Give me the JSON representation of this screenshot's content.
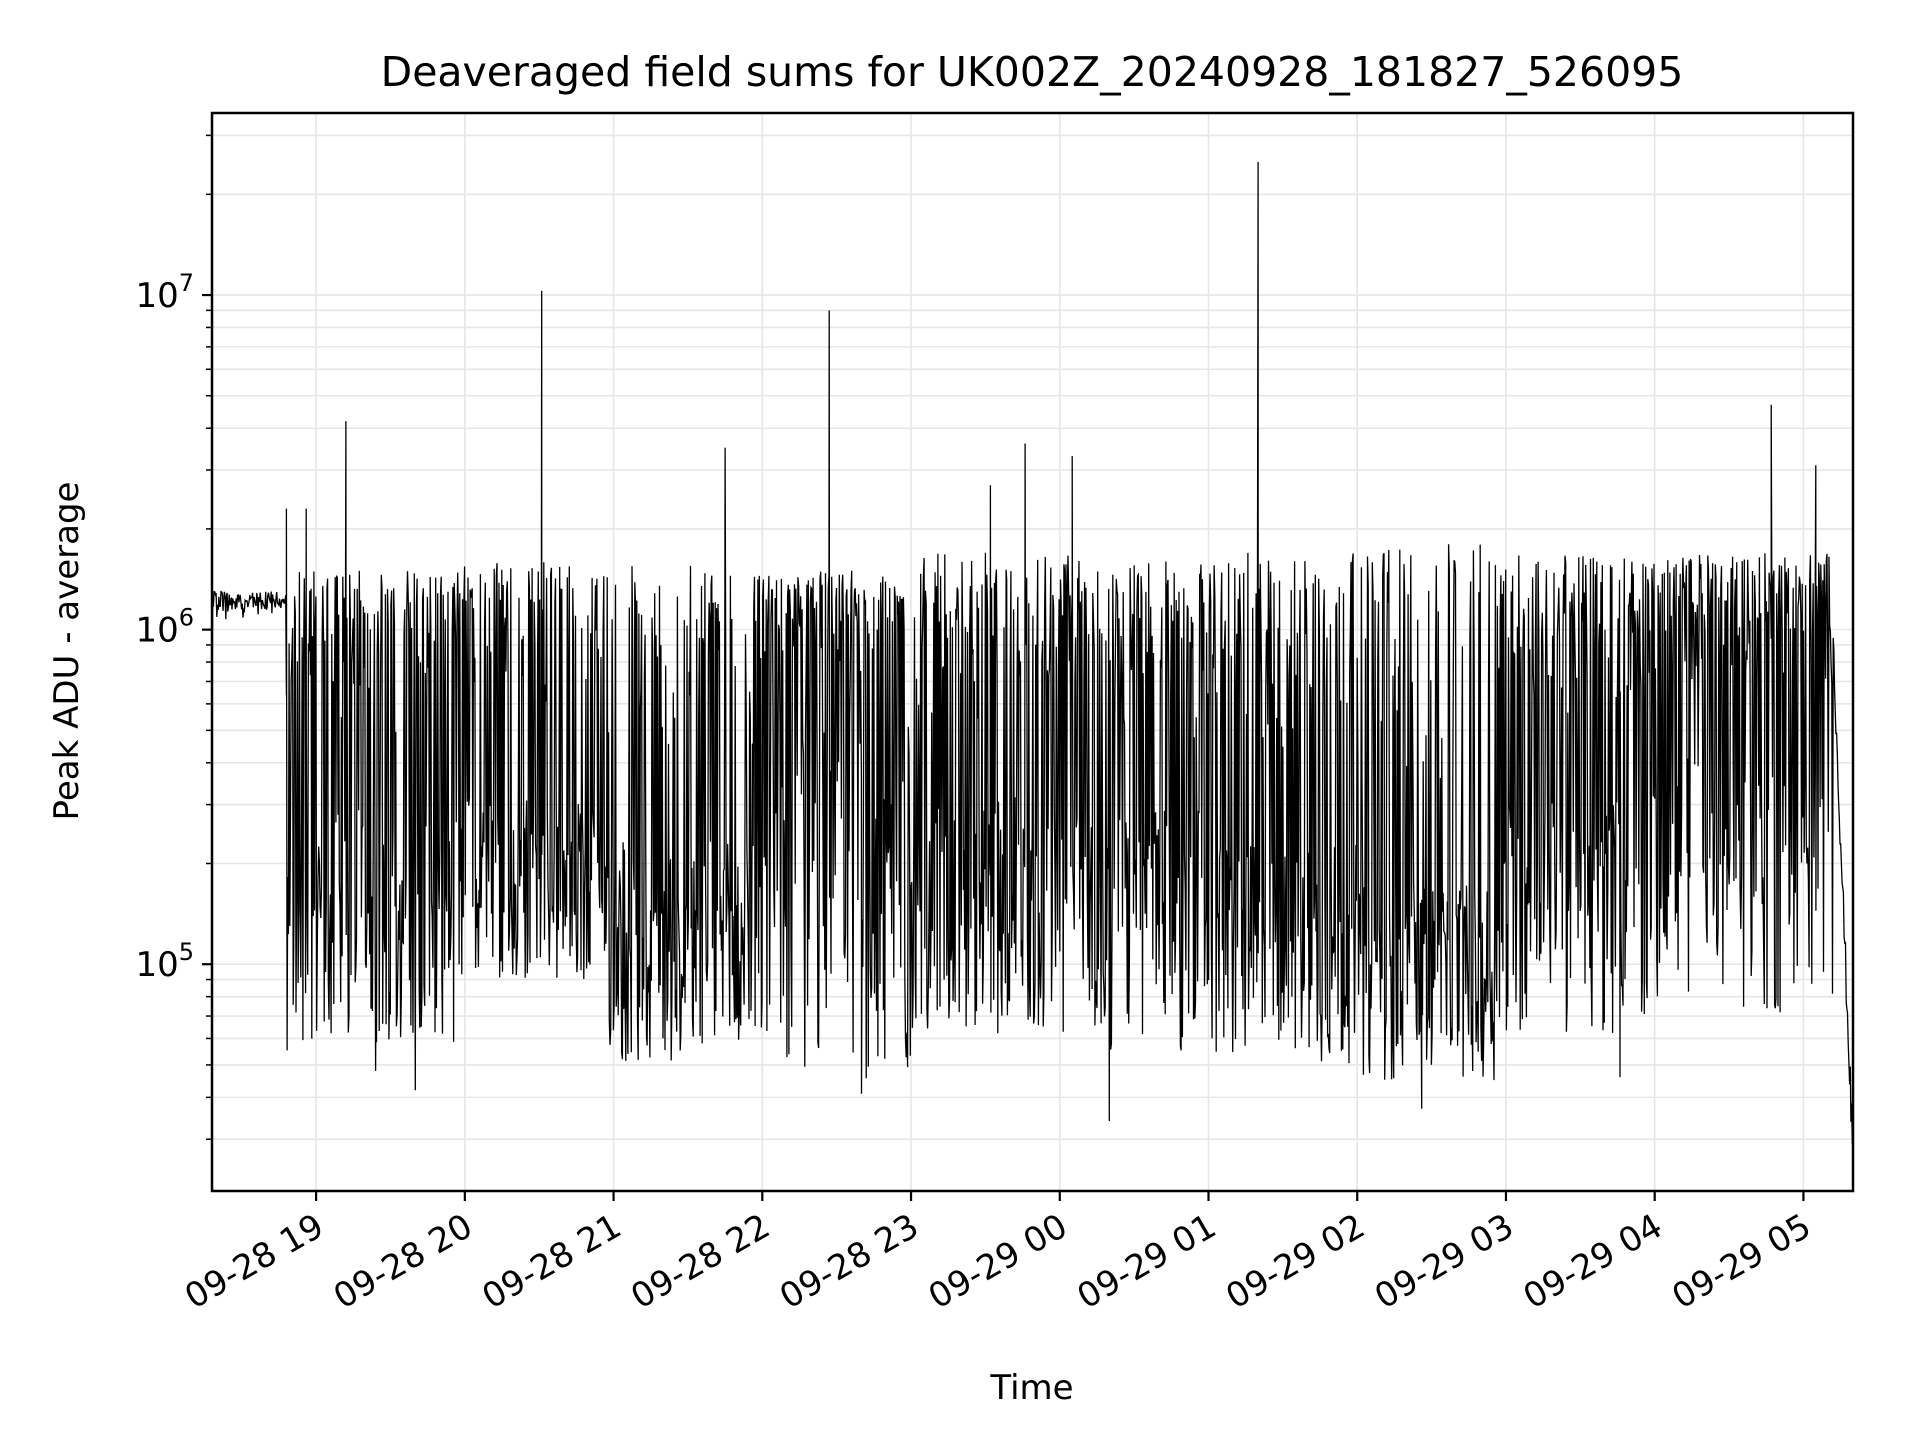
{
  "chart_data": {
    "type": "line",
    "title": "Deaveraged field sums for UK002Z_20240928_181827_526095",
    "xlabel": "Time",
    "ylabel": "Peak ADU - average",
    "yscale": "log",
    "grid": true,
    "grid_minor_y": true,
    "line_color": "#000000",
    "x_start": "2024-09-28 18:18",
    "x_end": "2024-09-29 05:20",
    "xlim": [
      "2024-09-28 18:18",
      "2024-09-29 05:20"
    ],
    "ylim": [
      21000,
      35000000
    ],
    "x_ticks": [
      {
        "value": "2024-09-28 19:00",
        "label": "09-28 19"
      },
      {
        "value": "2024-09-28 20:00",
        "label": "09-28 20"
      },
      {
        "value": "2024-09-28 21:00",
        "label": "09-28 21"
      },
      {
        "value": "2024-09-28 22:00",
        "label": "09-28 22"
      },
      {
        "value": "2024-09-28 23:00",
        "label": "09-28 23"
      },
      {
        "value": "2024-09-29 00:00",
        "label": "09-29 00"
      },
      {
        "value": "2024-09-29 01:00",
        "label": "09-29 01"
      },
      {
        "value": "2024-09-29 02:00",
        "label": "09-29 02"
      },
      {
        "value": "2024-09-29 03:00",
        "label": "09-29 03"
      },
      {
        "value": "2024-09-29 04:00",
        "label": "09-29 04"
      },
      {
        "value": "2024-09-29 05:00",
        "label": "09-29 05"
      }
    ],
    "y_ticks": [
      {
        "value": 100000,
        "base": "10",
        "exp": "5"
      },
      {
        "value": 1000000,
        "base": "10",
        "exp": "6"
      },
      {
        "value": 10000000,
        "base": "10",
        "exp": "7"
      }
    ],
    "notable_points": [
      {
        "x": "2024-09-28 18:18",
        "y": 600000
      },
      {
        "x": "2024-09-28 18:48",
        "y": 2300000
      },
      {
        "x": "2024-09-28 18:56",
        "y": 2300000
      },
      {
        "x": "2024-09-28 19:12",
        "y": 4200000
      },
      {
        "x": "2024-09-28 19:24",
        "y": 48000
      },
      {
        "x": "2024-09-28 19:40",
        "y": 42000
      },
      {
        "x": "2024-09-28 20:31",
        "y": 10300000
      },
      {
        "x": "2024-09-28 21:45",
        "y": 3500000
      },
      {
        "x": "2024-09-28 22:27",
        "y": 9000000
      },
      {
        "x": "2024-09-28 22:40",
        "y": 41000
      },
      {
        "x": "2024-09-28 23:32",
        "y": 2700000
      },
      {
        "x": "2024-09-28 23:46",
        "y": 3600000
      },
      {
        "x": "2024-09-29 00:05",
        "y": 3300000
      },
      {
        "x": "2024-09-29 00:20",
        "y": 34000
      },
      {
        "x": "2024-09-29 01:20",
        "y": 25000000
      },
      {
        "x": "2024-09-29 02:26",
        "y": 37000
      },
      {
        "x": "2024-09-29 03:46",
        "y": 46000
      },
      {
        "x": "2024-09-29 04:47",
        "y": 4700000
      },
      {
        "x": "2024-09-29 05:05",
        "y": 3100000
      },
      {
        "x": "2024-09-29 05:20",
        "y": 30000
      }
    ],
    "series": [
      {
        "segments": [
          [
            "2024-09-28 18:18",
            "2024-09-28 18:48",
            420000,
            1300000,
            420000,
            0,
            0
          ],
          [
            "2024-09-28 18:48",
            "2024-09-28 19:56",
            55000,
            1500000,
            180000,
            0.5,
            0
          ],
          [
            "2024-09-28 19:56",
            "2024-09-28 20:58",
            90000,
            1600000,
            220000,
            0.6,
            0
          ],
          [
            "2024-09-28 20:58",
            "2024-09-28 21:56",
            50000,
            1600000,
            150000,
            0.7,
            0
          ],
          [
            "2024-09-28 21:56",
            "2024-09-28 23:00",
            45000,
            1500000,
            260000,
            0.55,
            0
          ],
          [
            "2024-09-28 23:00",
            "2024-09-29 00:10",
            60000,
            1700000,
            200000,
            0.6,
            0
          ],
          [
            "2024-09-29 00:10",
            "2024-09-29 01:02",
            55000,
            1600000,
            180000,
            0.55,
            0
          ],
          [
            "2024-09-29 01:02",
            "2024-09-29 02:00",
            50000,
            1700000,
            150000,
            0.6,
            0
          ],
          [
            "2024-09-29 02:00",
            "2024-09-29 02:56",
            45000,
            1800000,
            120000,
            0.65,
            0
          ],
          [
            "2024-09-29 02:56",
            "2024-09-29 04:00",
            60000,
            1700000,
            200000,
            0.55,
            0
          ],
          [
            "2024-09-29 04:00",
            "2024-09-29 05:12",
            70000,
            1700000,
            260000,
            0.45,
            0
          ],
          [
            "2024-09-29 05:12",
            "2024-09-29 05:20",
            30000,
            900000,
            300000,
            0,
            1
          ]
        ]
      }
    ]
  }
}
